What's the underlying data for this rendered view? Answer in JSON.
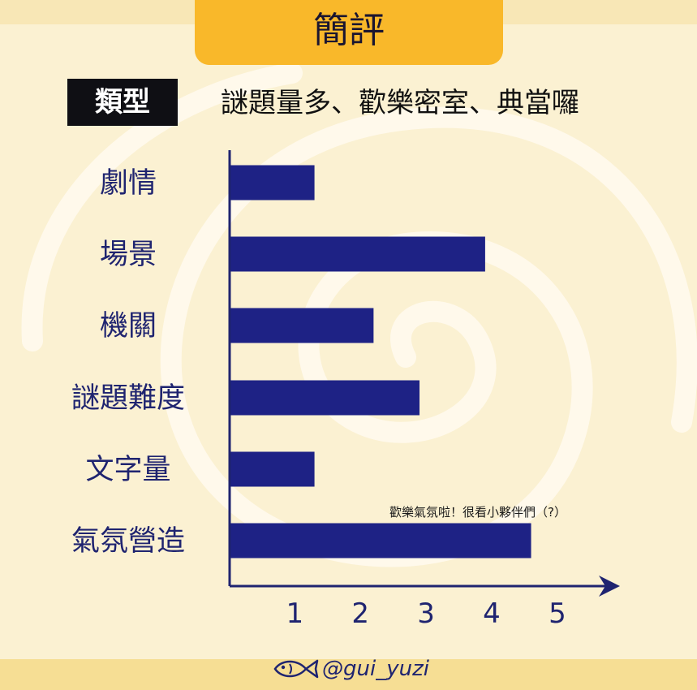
{
  "header": {
    "title": "簡評",
    "type_badge": "類型",
    "type_value": "謎題量多、歡樂密室、典當囉"
  },
  "chart_data": {
    "type": "bar",
    "orientation": "horizontal",
    "categories": [
      "劇情",
      "場景",
      "機關",
      "謎題難度",
      "文字量",
      "氣氛營造"
    ],
    "values": [
      1.3,
      3.9,
      2.2,
      2.9,
      1.3,
      4.6
    ],
    "xticks": [
      "1",
      "2",
      "3",
      "4",
      "5"
    ],
    "xlim": [
      0,
      5.5
    ],
    "annotation": {
      "text": "歡樂氣氛啦！很看小夥伴們（?）",
      "category_index": 5
    },
    "bar_color": "#1e2285",
    "axis_color": "#1f2470"
  },
  "footer": {
    "handle": "@gui_yuzi",
    "icon": "fish-icon"
  },
  "colors": {
    "background": "#fbf1d2",
    "banner": "#f9b82a",
    "badge": "#0f0f14",
    "text": "#1f2470"
  }
}
